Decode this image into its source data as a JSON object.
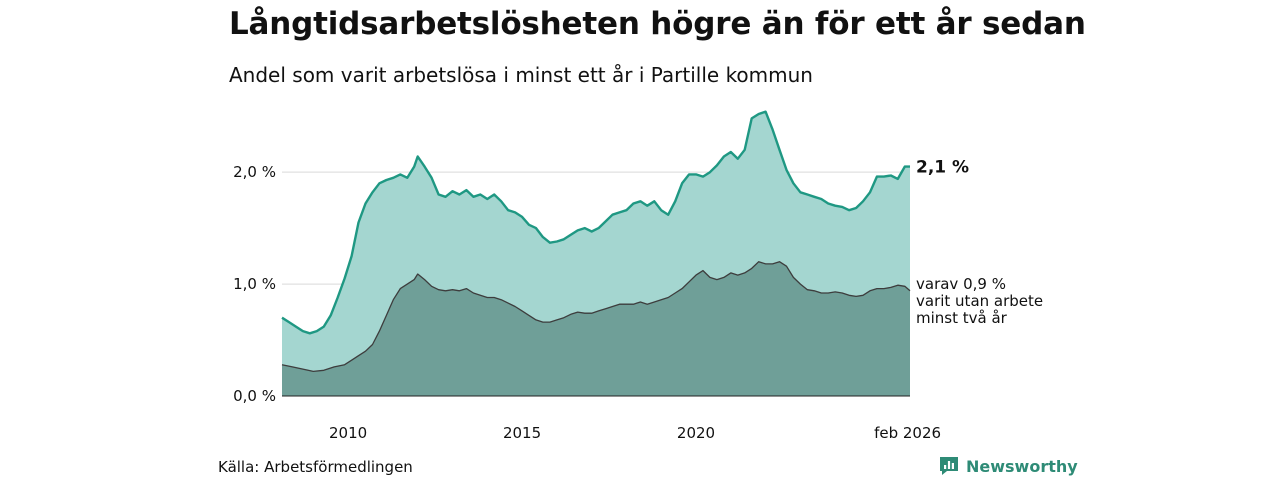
{
  "title": "Långtidsarbetslösheten högre än för ett år sedan",
  "subtitle": "Andel som varit arbetslösa i minst ett år i Partille kommun",
  "source": "Källa: Arbetsförmedlingen",
  "brand": "Newsworthy",
  "colors": {
    "main_line": "#1f9883",
    "main_fill": "#a4d6d0",
    "sub_line": "#3d3d3d",
    "sub_fill": "#6f9f98",
    "grid": "#d9d9d9"
  },
  "chart_data": {
    "type": "area",
    "title": "Långtidsarbetslösheten högre än för ett år sedan",
    "ylim": [
      0,
      2.6
    ],
    "yticks": [
      {
        "value": 0,
        "label": "0,0 %"
      },
      {
        "value": 1,
        "label": "1,0 %"
      },
      {
        "value": 2,
        "label": "2,0 %"
      }
    ],
    "xticks": [
      {
        "value": 2010,
        "label": "2010"
      },
      {
        "value": 2015,
        "label": "2015"
      },
      {
        "value": 2020,
        "label": "2020"
      },
      {
        "value": 2026.08,
        "label": "feb 2026"
      }
    ],
    "xlim": [
      2008.1,
      2026.15
    ],
    "series": [
      {
        "name": "Arbetslösa minst ett år",
        "end_label": "2,1 %",
        "points": [
          [
            2008.1,
            0.7
          ],
          [
            2008.3,
            0.66
          ],
          [
            2008.5,
            0.62
          ],
          [
            2008.7,
            0.58
          ],
          [
            2008.9,
            0.56
          ],
          [
            2009.1,
            0.58
          ],
          [
            2009.3,
            0.62
          ],
          [
            2009.5,
            0.72
          ],
          [
            2009.7,
            0.88
          ],
          [
            2009.9,
            1.05
          ],
          [
            2010.1,
            1.25
          ],
          [
            2010.3,
            1.55
          ],
          [
            2010.5,
            1.72
          ],
          [
            2010.7,
            1.82
          ],
          [
            2010.9,
            1.9
          ],
          [
            2011.1,
            1.93
          ],
          [
            2011.3,
            1.95
          ],
          [
            2011.5,
            1.98
          ],
          [
            2011.7,
            1.95
          ],
          [
            2011.9,
            2.05
          ],
          [
            2012.0,
            2.14
          ],
          [
            2012.2,
            2.05
          ],
          [
            2012.4,
            1.95
          ],
          [
            2012.6,
            1.8
          ],
          [
            2012.8,
            1.78
          ],
          [
            2013.0,
            1.83
          ],
          [
            2013.2,
            1.8
          ],
          [
            2013.4,
            1.84
          ],
          [
            2013.6,
            1.78
          ],
          [
            2013.8,
            1.8
          ],
          [
            2014.0,
            1.76
          ],
          [
            2014.2,
            1.8
          ],
          [
            2014.4,
            1.74
          ],
          [
            2014.6,
            1.66
          ],
          [
            2014.8,
            1.64
          ],
          [
            2015.0,
            1.6
          ],
          [
            2015.2,
            1.53
          ],
          [
            2015.4,
            1.5
          ],
          [
            2015.6,
            1.42
          ],
          [
            2015.8,
            1.37
          ],
          [
            2016.0,
            1.38
          ],
          [
            2016.2,
            1.4
          ],
          [
            2016.4,
            1.44
          ],
          [
            2016.6,
            1.48
          ],
          [
            2016.8,
            1.5
          ],
          [
            2017.0,
            1.47
          ],
          [
            2017.2,
            1.5
          ],
          [
            2017.4,
            1.56
          ],
          [
            2017.6,
            1.62
          ],
          [
            2017.8,
            1.64
          ],
          [
            2018.0,
            1.66
          ],
          [
            2018.2,
            1.72
          ],
          [
            2018.4,
            1.74
          ],
          [
            2018.6,
            1.7
          ],
          [
            2018.8,
            1.74
          ],
          [
            2019.0,
            1.66
          ],
          [
            2019.2,
            1.62
          ],
          [
            2019.4,
            1.74
          ],
          [
            2019.6,
            1.9
          ],
          [
            2019.8,
            1.98
          ],
          [
            2020.0,
            1.98
          ],
          [
            2020.2,
            1.96
          ],
          [
            2020.4,
            2.0
          ],
          [
            2020.6,
            2.06
          ],
          [
            2020.8,
            2.14
          ],
          [
            2021.0,
            2.18
          ],
          [
            2021.2,
            2.12
          ],
          [
            2021.4,
            2.2
          ],
          [
            2021.6,
            2.48
          ],
          [
            2021.8,
            2.52
          ],
          [
            2022.0,
            2.54
          ],
          [
            2022.2,
            2.38
          ],
          [
            2022.4,
            2.2
          ],
          [
            2022.6,
            2.02
          ],
          [
            2022.8,
            1.9
          ],
          [
            2023.0,
            1.82
          ],
          [
            2023.2,
            1.8
          ],
          [
            2023.4,
            1.78
          ],
          [
            2023.6,
            1.76
          ],
          [
            2023.8,
            1.72
          ],
          [
            2024.0,
            1.7
          ],
          [
            2024.2,
            1.69
          ],
          [
            2024.4,
            1.66
          ],
          [
            2024.6,
            1.68
          ],
          [
            2024.8,
            1.74
          ],
          [
            2025.0,
            1.82
          ],
          [
            2025.2,
            1.96
          ],
          [
            2025.4,
            1.96
          ],
          [
            2025.6,
            1.97
          ],
          [
            2025.8,
            1.94
          ],
          [
            2026.0,
            2.05
          ],
          [
            2026.15,
            2.05
          ]
        ]
      },
      {
        "name": "Varav utan arbete minst två år",
        "end_label_lines": [
          "varav 0,9 %",
          "varit utan arbete",
          "minst två år"
        ],
        "points": [
          [
            2008.1,
            0.28
          ],
          [
            2008.4,
            0.26
          ],
          [
            2008.7,
            0.24
          ],
          [
            2009.0,
            0.22
          ],
          [
            2009.3,
            0.23
          ],
          [
            2009.6,
            0.26
          ],
          [
            2009.9,
            0.28
          ],
          [
            2010.1,
            0.32
          ],
          [
            2010.3,
            0.36
          ],
          [
            2010.5,
            0.4
          ],
          [
            2010.7,
            0.46
          ],
          [
            2010.9,
            0.58
          ],
          [
            2011.1,
            0.72
          ],
          [
            2011.3,
            0.86
          ],
          [
            2011.5,
            0.96
          ],
          [
            2011.7,
            1.0
          ],
          [
            2011.9,
            1.04
          ],
          [
            2012.0,
            1.09
          ],
          [
            2012.2,
            1.04
          ],
          [
            2012.4,
            0.98
          ],
          [
            2012.6,
            0.95
          ],
          [
            2012.8,
            0.94
          ],
          [
            2013.0,
            0.95
          ],
          [
            2013.2,
            0.94
          ],
          [
            2013.4,
            0.96
          ],
          [
            2013.6,
            0.92
          ],
          [
            2013.8,
            0.9
          ],
          [
            2014.0,
            0.88
          ],
          [
            2014.2,
            0.88
          ],
          [
            2014.4,
            0.86
          ],
          [
            2014.6,
            0.83
          ],
          [
            2014.8,
            0.8
          ],
          [
            2015.0,
            0.76
          ],
          [
            2015.2,
            0.72
          ],
          [
            2015.4,
            0.68
          ],
          [
            2015.6,
            0.66
          ],
          [
            2015.8,
            0.66
          ],
          [
            2016.0,
            0.68
          ],
          [
            2016.2,
            0.7
          ],
          [
            2016.4,
            0.73
          ],
          [
            2016.6,
            0.75
          ],
          [
            2016.8,
            0.74
          ],
          [
            2017.0,
            0.74
          ],
          [
            2017.2,
            0.76
          ],
          [
            2017.4,
            0.78
          ],
          [
            2017.6,
            0.8
          ],
          [
            2017.8,
            0.82
          ],
          [
            2018.0,
            0.82
          ],
          [
            2018.2,
            0.82
          ],
          [
            2018.4,
            0.84
          ],
          [
            2018.6,
            0.82
          ],
          [
            2018.8,
            0.84
          ],
          [
            2019.0,
            0.86
          ],
          [
            2019.2,
            0.88
          ],
          [
            2019.4,
            0.92
          ],
          [
            2019.6,
            0.96
          ],
          [
            2019.8,
            1.02
          ],
          [
            2020.0,
            1.08
          ],
          [
            2020.2,
            1.12
          ],
          [
            2020.4,
            1.06
          ],
          [
            2020.6,
            1.04
          ],
          [
            2020.8,
            1.06
          ],
          [
            2021.0,
            1.1
          ],
          [
            2021.2,
            1.08
          ],
          [
            2021.4,
            1.1
          ],
          [
            2021.6,
            1.14
          ],
          [
            2021.8,
            1.2
          ],
          [
            2022.0,
            1.18
          ],
          [
            2022.2,
            1.18
          ],
          [
            2022.4,
            1.2
          ],
          [
            2022.6,
            1.16
          ],
          [
            2022.8,
            1.06
          ],
          [
            2023.0,
            1.0
          ],
          [
            2023.2,
            0.95
          ],
          [
            2023.4,
            0.94
          ],
          [
            2023.6,
            0.92
          ],
          [
            2023.8,
            0.92
          ],
          [
            2024.0,
            0.93
          ],
          [
            2024.2,
            0.92
          ],
          [
            2024.4,
            0.9
          ],
          [
            2024.6,
            0.89
          ],
          [
            2024.8,
            0.9
          ],
          [
            2025.0,
            0.94
          ],
          [
            2025.2,
            0.96
          ],
          [
            2025.4,
            0.96
          ],
          [
            2025.6,
            0.97
          ],
          [
            2025.8,
            0.99
          ],
          [
            2026.0,
            0.98
          ],
          [
            2026.15,
            0.94
          ]
        ]
      }
    ]
  }
}
